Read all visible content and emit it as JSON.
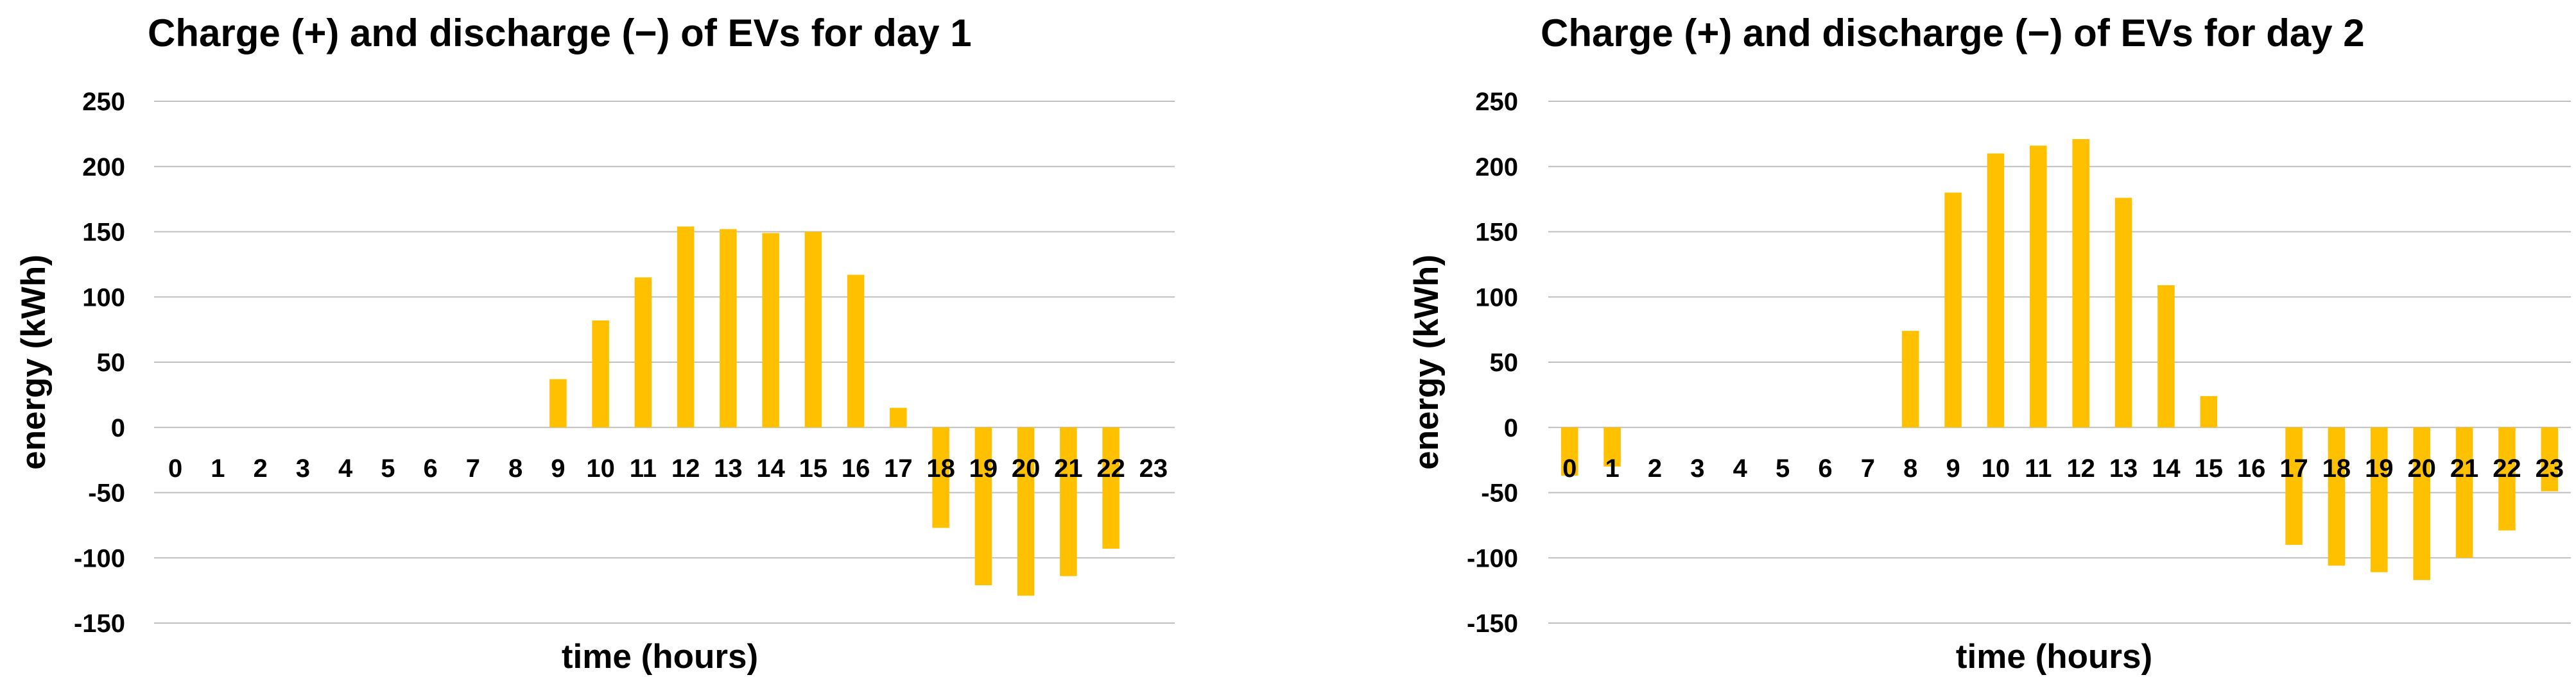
{
  "colors": {
    "bar": "#FFC000",
    "grid": "#BFBFBF",
    "text": "#000000",
    "background": "#FFFFFF"
  },
  "chart_data": [
    {
      "type": "bar",
      "title": "Charge (+) and discharge (−) of EVs for day 1",
      "xlabel": "time (hours)",
      "ylabel": "energy (kWh)",
      "ylim": [
        -150,
        250
      ],
      "yticks": [
        "-150",
        "-100",
        "-50",
        "0",
        "50",
        "100",
        "150",
        "200",
        "250"
      ],
      "grid": true,
      "legend": "none",
      "categories": [
        "0",
        "1",
        "2",
        "3",
        "4",
        "5",
        "6",
        "7",
        "8",
        "9",
        "10",
        "11",
        "12",
        "13",
        "14",
        "15",
        "16",
        "17",
        "18",
        "19",
        "20",
        "21",
        "22",
        "23"
      ],
      "values": [
        0,
        0,
        0,
        0,
        0,
        0,
        0,
        0,
        0,
        37,
        82,
        115,
        154,
        152,
        149,
        150,
        117,
        15,
        -77,
        -121,
        -129,
        -114,
        -93,
        0
      ]
    },
    {
      "type": "bar",
      "title": "Charge (+) and discharge (−) of EVs for day 2",
      "xlabel": "time (hours)",
      "ylabel": "energy (kWh)",
      "ylim": [
        -150,
        250
      ],
      "yticks": [
        "-150",
        "-100",
        "-50",
        "0",
        "50",
        "100",
        "150",
        "200",
        "250"
      ],
      "grid": true,
      "legend": "none",
      "categories": [
        "0",
        "1",
        "2",
        "3",
        "4",
        "5",
        "6",
        "7",
        "8",
        "9",
        "10",
        "11",
        "12",
        "13",
        "14",
        "15",
        "16",
        "17",
        "18",
        "19",
        "20",
        "21",
        "22",
        "23"
      ],
      "values": [
        -37,
        -30,
        0,
        0,
        0,
        0,
        0,
        0,
        74,
        180,
        210,
        216,
        221,
        176,
        109,
        24,
        0,
        -90,
        -106,
        -111,
        -117,
        -100,
        -79,
        -49
      ]
    }
  ]
}
